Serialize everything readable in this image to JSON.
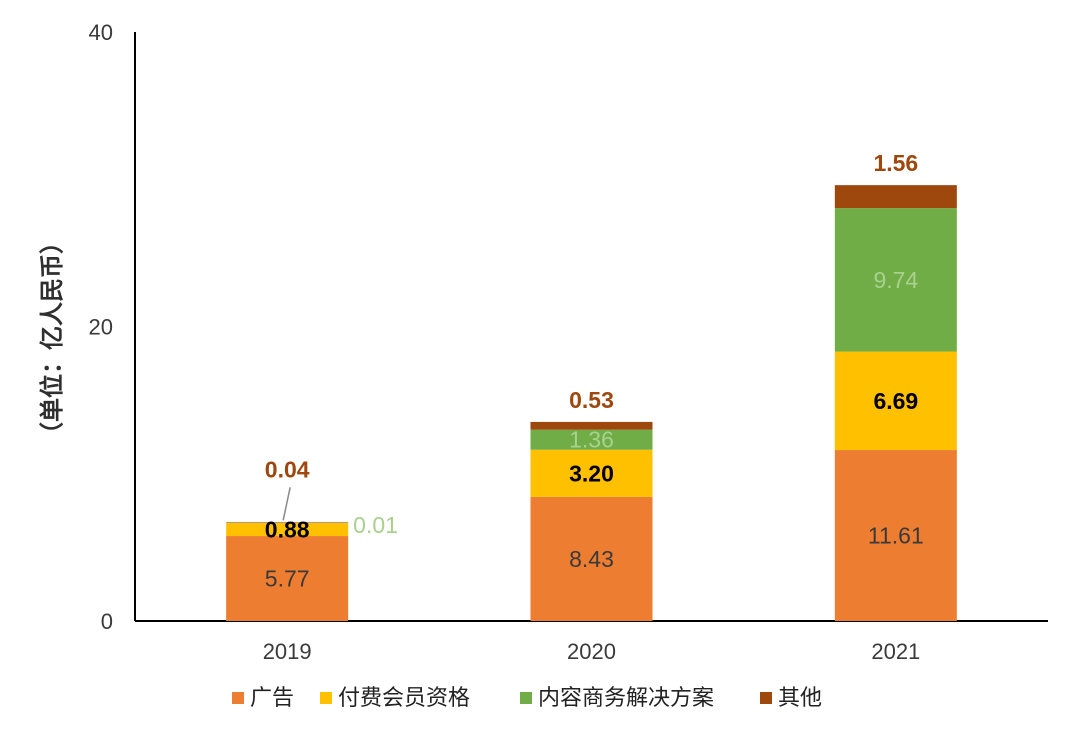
{
  "chart_data": {
    "type": "bar",
    "stacked": true,
    "title": "",
    "xlabel": "",
    "ylabel": "（单位：亿人民币）",
    "ylim": [
      0,
      40
    ],
    "yticks": [
      0,
      20,
      40
    ],
    "categories": [
      "2019",
      "2020",
      "2021"
    ],
    "series": [
      {
        "name": "广告",
        "color": "#ED7D31",
        "label_color": "#3a3a3a",
        "label_bold": false,
        "values": [
          5.77,
          8.43,
          11.61
        ],
        "labels": [
          "5.77",
          "8.43",
          "11.61"
        ]
      },
      {
        "name": "付费会员资格",
        "color": "#FFC000",
        "label_color": "#000000",
        "label_bold": true,
        "values": [
          0.88,
          3.2,
          6.69
        ],
        "labels": [
          "0.88",
          "3.20",
          "6.69"
        ]
      },
      {
        "name": "内容商务解决方案",
        "color": "#70AD47",
        "label_color": "#A9D18E",
        "label_bold": false,
        "values": [
          0.01,
          1.36,
          9.74
        ],
        "labels": [
          "0.01",
          "1.36",
          "9.74"
        ]
      },
      {
        "name": "其他",
        "color": "#9E480E",
        "label_color": "#9E480E",
        "label_bold": true,
        "values": [
          0.04,
          0.53,
          1.56
        ],
        "labels": [
          "0.04",
          "0.53",
          "1.56"
        ]
      }
    ],
    "legend_position": "bottom",
    "grid": false
  }
}
